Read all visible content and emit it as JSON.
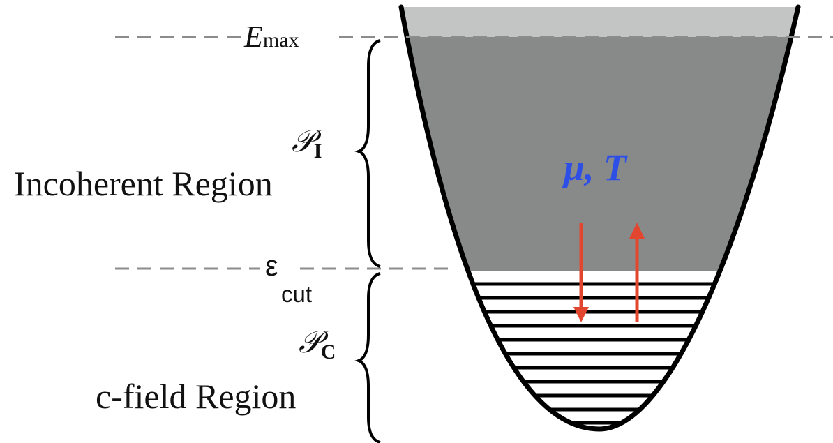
{
  "labels": {
    "e_max_symbol": "E",
    "e_max_subscript": "max",
    "p_incoherent_symbol": "𝒫",
    "p_incoherent_subscript": "I",
    "incoherent_region": "Incoherent Region",
    "eps_cut_symbol": "ε",
    "eps_cut_subscript": "cut",
    "p_cfield_symbol": "𝒫",
    "p_cfield_subscript": "C",
    "cfield_region": "c-field Region",
    "mu_T": "μ, T"
  },
  "colors": {
    "top_band": "#c3c4c4",
    "incoherent_fill": "#888a8a",
    "well_outline": "#000000",
    "dashed_line": "#8c8c8c",
    "arrow": "#e2462e",
    "mu_T_text": "#2e4fe6",
    "text": "#111111"
  }
}
